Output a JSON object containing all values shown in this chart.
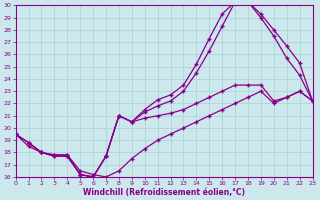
{
  "xlabel": "Windchill (Refroidissement éolien,°C)",
  "bg_color": "#cce8ec",
  "grid_color": "#aed4d8",
  "line_color": "#880088",
  "xlim": [
    0,
    23
  ],
  "ylim": [
    16,
    30
  ],
  "xticks": [
    0,
    1,
    2,
    3,
    4,
    5,
    6,
    7,
    8,
    9,
    10,
    11,
    12,
    13,
    14,
    15,
    16,
    17,
    18,
    19,
    20,
    21,
    22,
    23
  ],
  "yticks": [
    16,
    17,
    18,
    19,
    20,
    21,
    22,
    23,
    24,
    25,
    26,
    27,
    28,
    29,
    30
  ],
  "curve_upper_x": [
    0,
    1,
    2,
    3,
    4,
    5,
    6,
    7,
    8,
    9,
    10,
    11,
    12,
    13,
    14,
    15,
    16,
    17,
    18,
    19,
    20,
    21,
    22,
    23
  ],
  "curve_upper_y": [
    19.5,
    18.8,
    18.0,
    17.7,
    17.7,
    16.2,
    16.0,
    17.7,
    21.0,
    20.5,
    21.5,
    22.3,
    22.7,
    23.5,
    25.2,
    27.3,
    29.3,
    30.3,
    30.3,
    29.3,
    28.0,
    26.7,
    25.3,
    22.2
  ],
  "curve_mid_x": [
    0,
    1,
    2,
    3,
    4,
    5,
    6,
    7,
    8,
    9,
    10,
    11,
    12,
    13,
    14,
    15,
    16,
    17,
    18,
    19,
    20,
    21,
    22,
    23
  ],
  "curve_mid_y": [
    19.5,
    18.8,
    18.0,
    17.7,
    17.7,
    16.2,
    16.0,
    17.7,
    21.0,
    20.5,
    21.3,
    21.8,
    22.2,
    23.0,
    24.5,
    26.3,
    28.3,
    30.3,
    30.3,
    29.0,
    27.5,
    25.7,
    24.3,
    22.2
  ],
  "curve_low_x": [
    0,
    1,
    2,
    3,
    4,
    5,
    6,
    7,
    8,
    9,
    10,
    11,
    12,
    13,
    14,
    15,
    16,
    17,
    18,
    19,
    20,
    21,
    22,
    23
  ],
  "curve_low_y": [
    19.5,
    18.5,
    18.0,
    17.8,
    17.8,
    16.2,
    16.0,
    17.7,
    21.0,
    20.5,
    20.8,
    21.0,
    21.2,
    21.5,
    22.0,
    22.5,
    23.0,
    23.5,
    23.5,
    23.5,
    22.2,
    22.5,
    23.0,
    22.2
  ],
  "curve_flat_x": [
    1,
    2,
    3,
    4,
    5,
    6,
    7,
    8,
    9,
    10,
    11,
    12,
    13,
    14,
    15,
    16,
    17,
    18,
    19,
    20,
    21,
    22,
    23
  ],
  "curve_flat_y": [
    18.8,
    18.0,
    17.8,
    17.8,
    16.5,
    16.2,
    16.0,
    16.5,
    17.5,
    18.3,
    19.0,
    19.5,
    20.0,
    20.5,
    21.0,
    21.5,
    22.0,
    22.5,
    23.0,
    22.0,
    22.5,
    23.0,
    22.2
  ]
}
